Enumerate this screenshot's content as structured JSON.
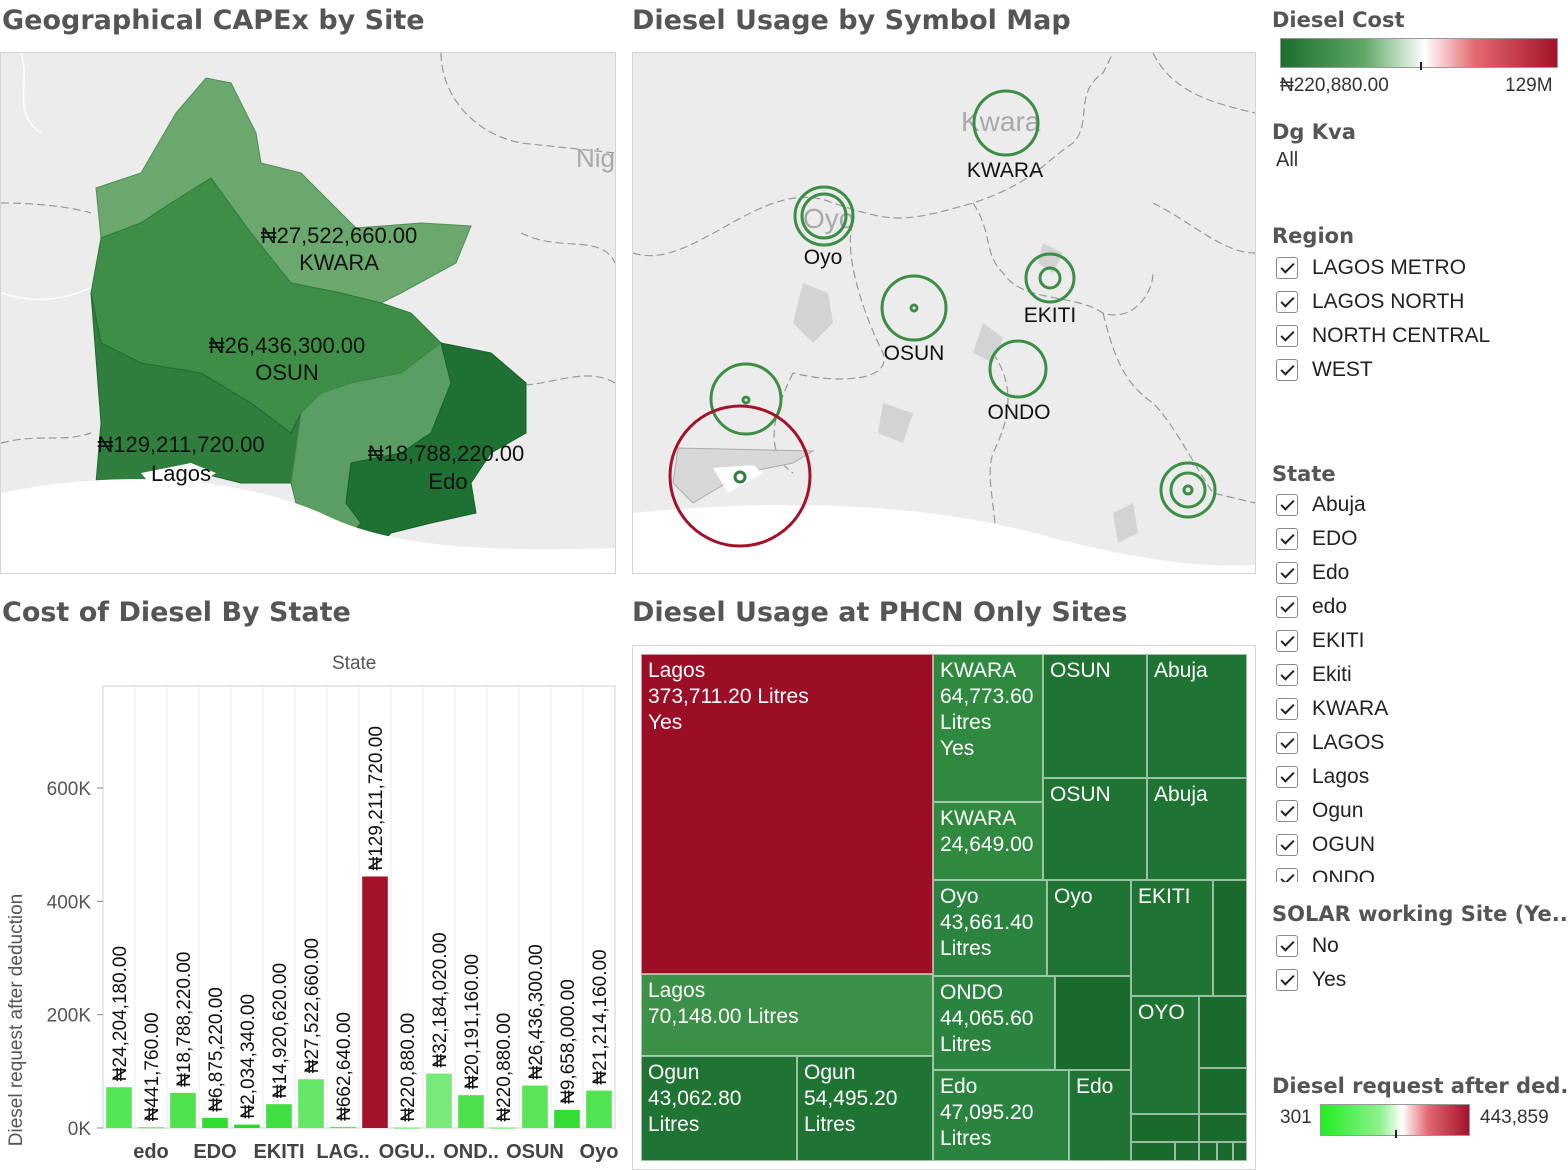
{
  "titles": {
    "capex": "Geographical CAPEx by Site",
    "symbol": "Diesel Usage by Symbol Map",
    "cost": "Cost of Diesel By State",
    "phcn": "Diesel Usage at PHCN Only Sites"
  },
  "capex_map": {
    "basemap_label": "Nig",
    "regions": [
      {
        "value": "₦27,522,660.00",
        "name": "KWARA",
        "color": "#6aa86e"
      },
      {
        "value": "₦26,436,300.00",
        "name": "OSUN",
        "color": "#3e8e48"
      },
      {
        "value": "₦129,211,720.00",
        "name": "Lagos",
        "color": "#2f7e3d"
      },
      {
        "value": "₦18,788,220.00",
        "name": "Edo",
        "color": "#1f7033"
      }
    ]
  },
  "symbol_map": {
    "basemap_labels": [
      "Kwara",
      "Oyo"
    ],
    "states": [
      "KWARA",
      "Oyo",
      "EKITI",
      "OSUN",
      "ONDO"
    ]
  },
  "legend_diesel_cost": {
    "title": "Diesel Cost",
    "min": "₦220,880.00",
    "max": "129M",
    "colors": [
      "#1b6e2e",
      "#ffffff",
      "#a3122a"
    ]
  },
  "legend_dgkva": {
    "title": "Dg Kva",
    "value": "All"
  },
  "legend_region": {
    "title": "Region",
    "items": [
      "LAGOS METRO",
      "LAGOS NORTH",
      "NORTH CENTRAL",
      "WEST"
    ]
  },
  "legend_state": {
    "title": "State",
    "items": [
      "Abuja",
      "EDO",
      "Edo",
      "edo",
      "EKITI",
      "Ekiti",
      "KWARA",
      "LAGOS",
      "Lagos",
      "Ogun",
      "OGUN",
      "ONDO"
    ]
  },
  "legend_solar": {
    "title": "SOLAR working Site (Ye..",
    "items": [
      "No",
      "Yes"
    ]
  },
  "legend_diesel_request": {
    "title": "Diesel request after ded..",
    "min": "301",
    "max": "443,859",
    "colors": [
      "#22ee22",
      "#ffffff",
      "#a3122a"
    ]
  },
  "chart_data": {
    "type": "bar",
    "title": "Cost of Diesel By State",
    "xlabel": "State",
    "ylabel": "Diesel request after deduction",
    "ylim": [
      0,
      780000
    ],
    "yticks": [
      0,
      200000,
      400000,
      600000
    ],
    "ytick_labels": [
      "0K",
      "200K",
      "400K",
      "600K"
    ],
    "category_labels": [
      "edo",
      "EDO",
      "EKITI",
      "LAG..",
      "OGU..",
      "OND..",
      "OSUN",
      "Oyo"
    ],
    "bars": [
      {
        "value": 72000,
        "label": "₦24,204,180.00",
        "color": "#55e655"
      },
      {
        "value": 1300,
        "label": "₦441,760.00",
        "color": "#55e655"
      },
      {
        "value": 62000,
        "label": "₦18,788,220.00",
        "color": "#4fe24f"
      },
      {
        "value": 18000,
        "label": "₦6,875,220.00",
        "color": "#2fdc2f"
      },
      {
        "value": 6000,
        "label": "₦2,034,340.00",
        "color": "#2bd82b"
      },
      {
        "value": 42000,
        "label": "₦14,920,620.00",
        "color": "#40df40"
      },
      {
        "value": 86000,
        "label": "₦27,522,660.00",
        "color": "#66e666"
      },
      {
        "value": 2000,
        "label": "₦662,640.00",
        "color": "#55e655"
      },
      {
        "value": 443859,
        "label": "₦129,211,720.00",
        "color": "#a3122a"
      },
      {
        "value": 700,
        "label": "₦220,880.00",
        "color": "#55e655"
      },
      {
        "value": 96000,
        "label": "₦32,184,020.00",
        "color": "#77ea77"
      },
      {
        "value": 58000,
        "label": "₦20,191,160.00",
        "color": "#4ce14c"
      },
      {
        "value": 700,
        "label": "₦220,880.00",
        "color": "#55e655"
      },
      {
        "value": 75000,
        "label": "₦26,436,300.00",
        "color": "#5ae45a"
      },
      {
        "value": 32000,
        "label": "₦9,658,000.00",
        "color": "#33dc33"
      },
      {
        "value": 66000,
        "label": "₦21,214,160.00",
        "color": "#52e352"
      }
    ]
  },
  "treemap": {
    "cells": [
      {
        "text": "Lagos\n373,711.20 Litres\nYes",
        "color": "#9c0e26"
      },
      {
        "text": "KWARA\n64,773.60\nLitres\nYes",
        "color": "#2f8a40"
      },
      {
        "text": "OSUN",
        "color": "#1f7433"
      },
      {
        "text": "Abuja",
        "color": "#1f7433"
      },
      {
        "text": "OSUN",
        "color": "#1f7433"
      },
      {
        "text": "Abuja",
        "color": "#1f7433"
      },
      {
        "text": "KWARA\n24,649.00",
        "color": "#2f8a40"
      },
      {
        "text": "Lagos\n70,148.00 Litres",
        "color": "#3c9048"
      },
      {
        "text": "Oyo\n43,661.40\nLitres",
        "color": "#2a8440"
      },
      {
        "text": "Oyo",
        "color": "#1f7433"
      },
      {
        "text": "EKITI",
        "color": "#1f7433"
      },
      {
        "text": "",
        "color": "#1a6a2e"
      },
      {
        "text": "ONDO\n44,065.60\nLitres",
        "color": "#2a8440"
      },
      {
        "text": "",
        "color": "#1a6a2e"
      },
      {
        "text": "OYO",
        "color": "#1f7433"
      },
      {
        "text": "",
        "color": "#1a6a2e"
      },
      {
        "text": "",
        "color": "#1a6a2e"
      },
      {
        "text": "Ogun\n43,062.80\nLitres",
        "color": "#1f7433"
      },
      {
        "text": "Ogun\n54,495.20\nLitres",
        "color": "#1f7433"
      },
      {
        "text": "Edo\n47,095.20\nLitres",
        "color": "#2a8440"
      },
      {
        "text": "Edo",
        "color": "#1f7433"
      },
      {
        "text": "",
        "color": "#1a6a2e"
      },
      {
        "text": "",
        "color": "#1a6a2e"
      },
      {
        "text": "",
        "color": "#1a6a2e"
      },
      {
        "text": "",
        "color": "#1a6a2e"
      },
      {
        "text": "",
        "color": "#1a6a2e"
      },
      {
        "text": "",
        "color": "#1a6a2e"
      },
      {
        "text": "",
        "color": "#1a6a2e"
      }
    ]
  }
}
